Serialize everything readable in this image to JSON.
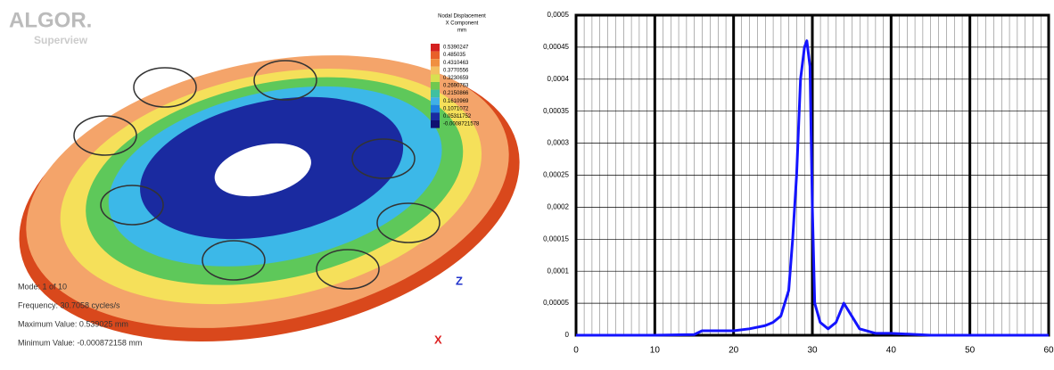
{
  "fea_view": {
    "logo": "ALGOR.",
    "logo_sub": "Superview",
    "legend_title": [
      "Nodal Displacement",
      "X Component",
      "mm"
    ],
    "legend_values": [
      "0.5390247",
      "0.485035",
      "0.4310463",
      "0.3770556",
      "0.3230659",
      "0.2690763",
      "0.2150866",
      "0.1610969",
      "0.1071072",
      "0.05311752",
      "-0.0008721578"
    ],
    "info": [
      "Mode:  1 of 10",
      "Frequency: 30.7058 cycles/s",
      "Maximum Value: 0.539025 mm",
      "Minimum Value: -0.000872158 mm"
    ],
    "triad": [
      "Z",
      "X"
    ]
  },
  "chart_data": {
    "type": "line",
    "x": [
      0,
      5,
      10,
      15,
      16,
      20,
      22,
      24,
      25,
      26,
      27,
      27.5,
      28,
      28.5,
      29,
      29.3,
      29.7,
      30,
      30.3,
      31,
      32,
      33,
      34,
      35,
      36,
      38,
      40,
      45,
      60
    ],
    "series": [
      {
        "color": "#1414ff",
        "values": [
          0,
          0,
          0,
          1e-06,
          7e-06,
          7e-06,
          1e-05,
          1.5e-05,
          2e-05,
          3e-05,
          7e-05,
          0.00015,
          0.00025,
          0.0004,
          0.00045,
          0.00046,
          0.00042,
          0.0002,
          5e-05,
          2e-05,
          1e-05,
          2e-05,
          5e-05,
          3e-05,
          1e-05,
          3e-06,
          3e-06,
          0,
          0
        ]
      }
    ],
    "xlim": [
      0,
      60
    ],
    "xticks": [
      0,
      10,
      20,
      30,
      40,
      50,
      60
    ],
    "ylim": [
      0,
      0.0005
    ],
    "yticks": [
      0,
      {
        "value": 5e-05,
        "label": "0,00005"
      },
      {
        "value": 0.0001,
        "label": "0,0001"
      },
      {
        "value": 0.00015,
        "label": "0,00015"
      },
      {
        "value": 0.0002,
        "label": "0,0002"
      },
      {
        "value": 0.00025,
        "label": "0,00025"
      },
      {
        "value": 0.0003,
        "label": "0,0003"
      },
      {
        "value": 0.00035,
        "label": "0,00035"
      },
      {
        "value": 0.0004,
        "label": "0,0004"
      },
      {
        "value": 0.00045,
        "label": "0,00045"
      },
      {
        "value": 0.0005,
        "label": "0,0005"
      }
    ],
    "grid": true
  }
}
